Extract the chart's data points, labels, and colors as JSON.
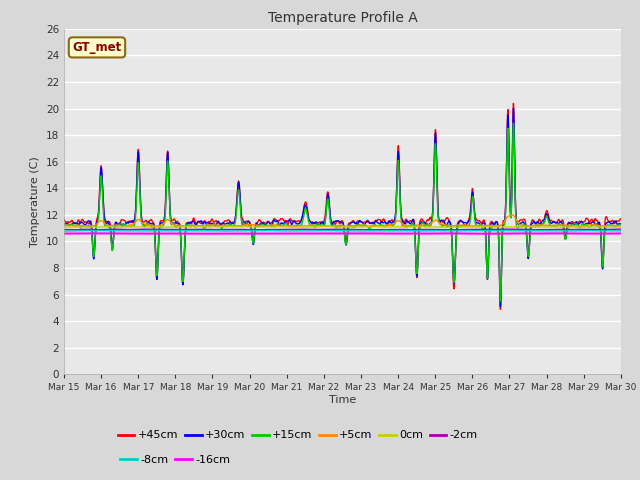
{
  "title": "Temperature Profile A",
  "xlabel": "Time",
  "ylabel": "Temperature (C)",
  "ylim": [
    0,
    26
  ],
  "yticks": [
    0,
    2,
    4,
    6,
    8,
    10,
    12,
    14,
    16,
    18,
    20,
    22,
    24,
    26
  ],
  "xtick_labels": [
    "Mar 15",
    "Mar 16",
    "Mar 17",
    "Mar 18",
    "Mar 19",
    "Mar 20",
    "Mar 21",
    "Mar 22",
    "Mar 23",
    "Mar 24",
    "Mar 25",
    "Mar 26",
    "Mar 27",
    "Mar 28",
    "Mar 29",
    "Mar 30"
  ],
  "fig_bg_color": "#d8d8d8",
  "plot_bg_color": "#e8e8e8",
  "legend_box_color": "#ffffcc",
  "legend_box_edge": "#8b6914",
  "annotation_text": "GT_met",
  "annotation_color": "#8b0000",
  "series": [
    {
      "label": "+45cm",
      "color": "#ff0000",
      "lw": 1.0
    },
    {
      "label": "+30cm",
      "color": "#0000ff",
      "lw": 1.0
    },
    {
      "label": "+15cm",
      "color": "#00cc00",
      "lw": 1.0
    },
    {
      "label": "+5cm",
      "color": "#ff8800",
      "lw": 1.0
    },
    {
      "label": "0cm",
      "color": "#cccc00",
      "lw": 1.0
    },
    {
      "label": "-2cm",
      "color": "#aa00aa",
      "lw": 1.0
    },
    {
      "label": "-8cm",
      "color": "#00cccc",
      "lw": 1.0
    },
    {
      "label": "-16cm",
      "color": "#ff00ff",
      "lw": 1.5
    }
  ]
}
